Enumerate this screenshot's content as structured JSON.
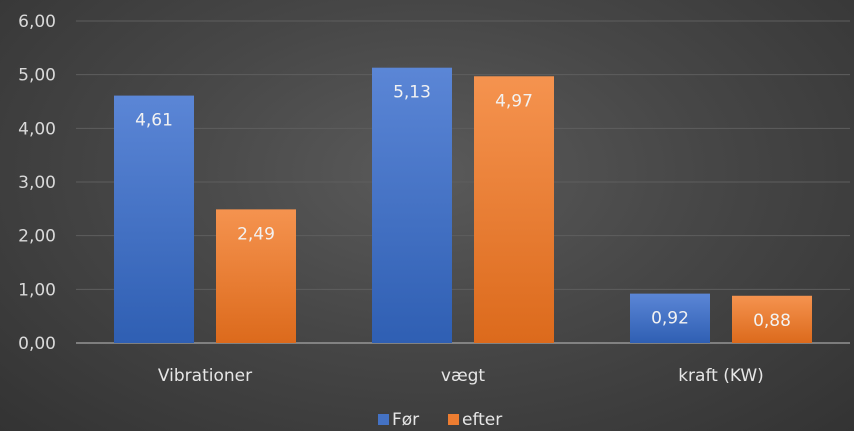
{
  "chart_data": {
    "type": "bar",
    "categories": [
      "Vibrationer",
      "vægt",
      "kraft (KW)"
    ],
    "series": [
      {
        "name": "Før",
        "values": [
          4.61,
          5.13,
          0.92
        ],
        "labels": [
          "4,61",
          "5,13",
          "0,92"
        ],
        "color": "#4472c4"
      },
      {
        "name": "efter",
        "values": [
          2.49,
          4.97,
          0.88
        ],
        "labels": [
          "2,49",
          "4,97",
          "0,88"
        ],
        "color": "#ed7d31"
      }
    ],
    "ylim": [
      0,
      6
    ],
    "yticks": [
      0,
      1,
      2,
      3,
      4,
      5,
      6
    ],
    "ytick_labels": [
      "0,00",
      "1,00",
      "2,00",
      "3,00",
      "4,00",
      "5,00",
      "6,00"
    ],
    "grid": true,
    "legend": "bottom",
    "background": "#474747"
  }
}
